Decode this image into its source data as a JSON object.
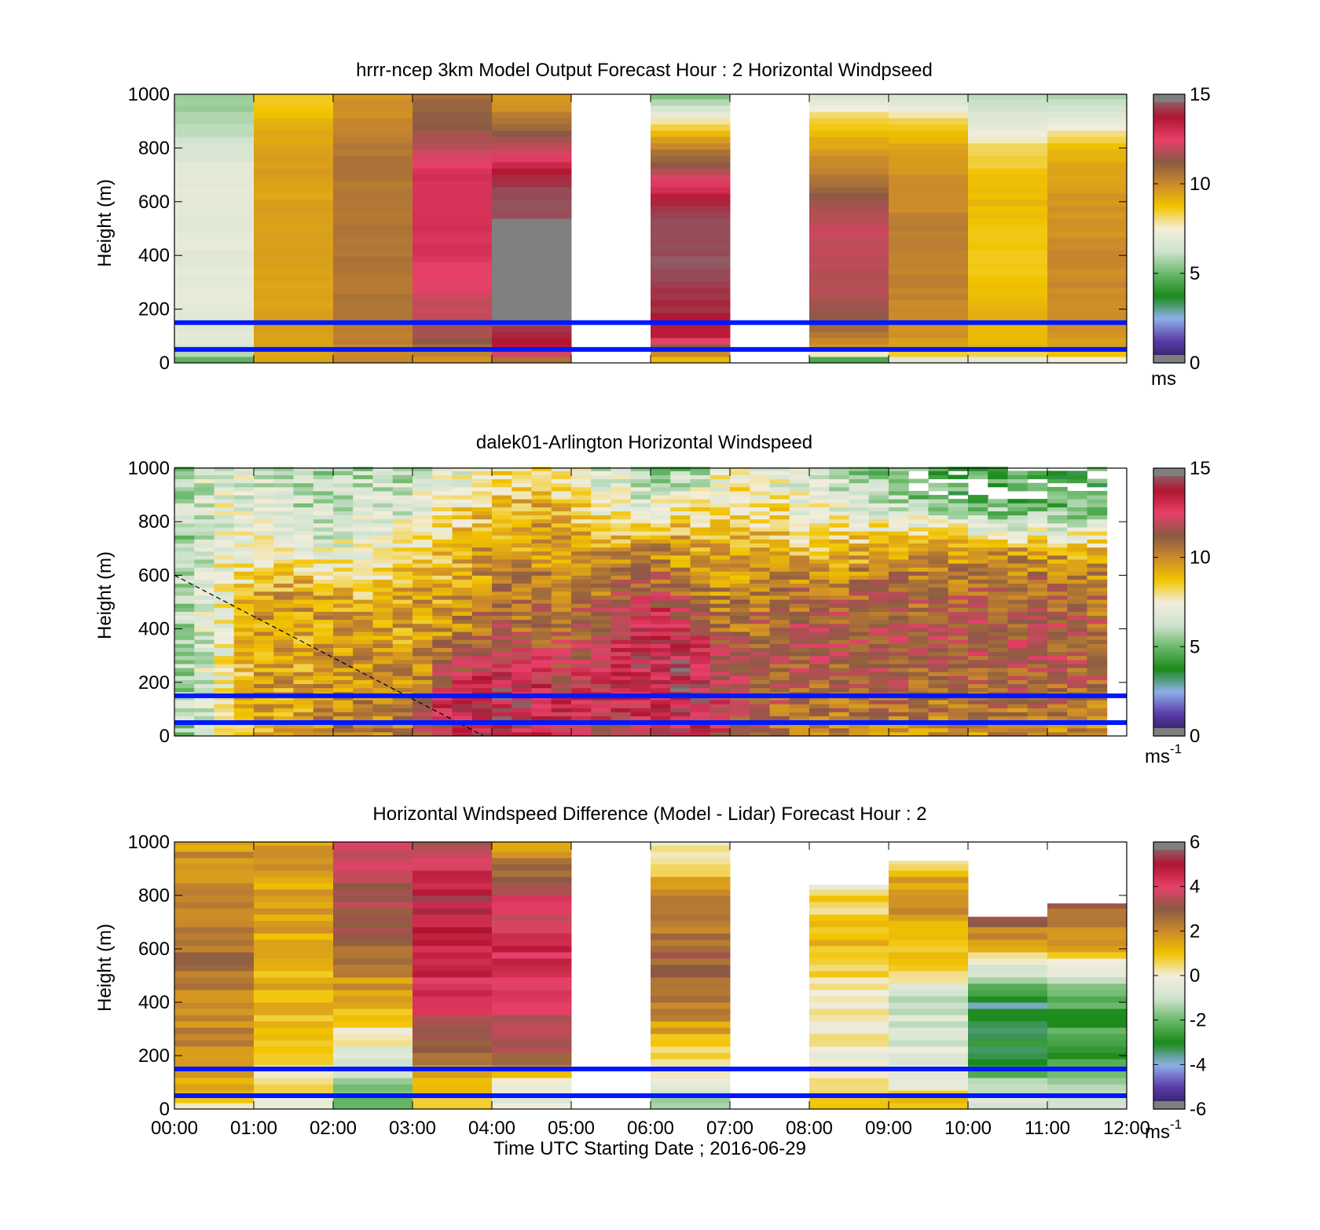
{
  "chart_data": [
    {
      "type": "heatmap",
      "title": "hrrr-ncep 3km Model Output   Forecast Hour : 2 Horizontal Windpseed",
      "ylabel": "Height (m)",
      "ylim": [
        0,
        1000
      ],
      "yticks": [
        0,
        200,
        400,
        600,
        800,
        1000
      ],
      "xlim_hours": [
        0,
        12
      ],
      "colorbar": {
        "min": 0,
        "max": 15,
        "ticks": [
          0,
          5,
          10,
          15
        ],
        "unit": "ms"
      },
      "bands": [
        {
          "start": 0,
          "end": 1,
          "heights": [
            0,
            50,
            100,
            200,
            300,
            400,
            500,
            600,
            700,
            800,
            900,
            1000
          ],
          "values": [
            4.5,
            6.5,
            7,
            7,
            7,
            7,
            7,
            7,
            7,
            6.5,
            5.8,
            5.5
          ]
        },
        {
          "start": 1,
          "end": 2,
          "heights": [
            0,
            50,
            100,
            200,
            300,
            400,
            500,
            600,
            700,
            800,
            900,
            1000
          ],
          "values": [
            9.5,
            9.5,
            9.5,
            9.5,
            9.5,
            9.5,
            9.5,
            9.5,
            9.5,
            9.5,
            9,
            8.5
          ]
        },
        {
          "start": 2,
          "end": 3,
          "heights": [
            0,
            50,
            100,
            200,
            300,
            400,
            500,
            600,
            700,
            800,
            900,
            1000
          ],
          "values": [
            10,
            10,
            10.3,
            10.5,
            10.5,
            10.5,
            10.5,
            10.5,
            10.5,
            10.5,
            10,
            9.8
          ]
        },
        {
          "start": 3,
          "end": 4,
          "heights": [
            0,
            50,
            100,
            200,
            300,
            400,
            500,
            600,
            700,
            800,
            900,
            1000
          ],
          "values": [
            9.5,
            10.5,
            11.5,
            12,
            12.5,
            12.8,
            13,
            13,
            13,
            12,
            11.2,
            10.8
          ]
        },
        {
          "start": 4,
          "end": 5,
          "heights": [
            0,
            50,
            100,
            200,
            300,
            400,
            500,
            600,
            700,
            800,
            900,
            1000
          ],
          "values": [
            9.5,
            13.5,
            14,
            null,
            null,
            null,
            null,
            14.5,
            14,
            12,
            10.5,
            9.5
          ]
        },
        {
          "start": 6,
          "end": 7,
          "heights": [
            0,
            50,
            100,
            200,
            300,
            400,
            500,
            600,
            700,
            800,
            900,
            1000
          ],
          "values": [
            8.5,
            10.5,
            13.5,
            14,
            14.3,
            14.5,
            14.5,
            14,
            12,
            10.3,
            7.8,
            5
          ]
        },
        {
          "start": 8,
          "end": 9,
          "heights": [
            0,
            50,
            100,
            200,
            300,
            400,
            500,
            600,
            700,
            800,
            900,
            1000
          ],
          "values": [
            3,
            9.5,
            10.5,
            11.5,
            11.8,
            12,
            12,
            11.5,
            10.5,
            9.5,
            8.5,
            6.3
          ]
        },
        {
          "start": 9,
          "end": 10,
          "heights": [
            0,
            50,
            100,
            200,
            300,
            400,
            500,
            600,
            700,
            800,
            900,
            1000
          ],
          "values": [
            6,
            9.5,
            9.8,
            10,
            10.2,
            10.3,
            10.3,
            10,
            9.8,
            9.5,
            8.3,
            6.3
          ]
        },
        {
          "start": 10,
          "end": 11,
          "heights": [
            0,
            50,
            100,
            200,
            300,
            400,
            500,
            600,
            700,
            800,
            900,
            1000
          ],
          "values": [
            6.5,
            9,
            9,
            9.2,
            8.7,
            8.5,
            8.8,
            9,
            8.7,
            8.2,
            6.8,
            6
          ]
        },
        {
          "start": 11,
          "end": 12,
          "heights": [
            0,
            50,
            100,
            200,
            300,
            400,
            500,
            600,
            700,
            800,
            900,
            1000
          ],
          "values": [
            7,
            9.5,
            9.8,
            10,
            10,
            10,
            9.8,
            9.8,
            9.5,
            9,
            7,
            5.8
          ]
        }
      ],
      "reference_lines_m": [
        150,
        50
      ]
    },
    {
      "type": "heatmap",
      "title": "dalek01-Arlington  Horizontal Windspeed",
      "ylabel": "Height (m)",
      "ylim": [
        0,
        1000
      ],
      "yticks": [
        0,
        200,
        400,
        600,
        800,
        1000
      ],
      "xlim_hours": [
        0,
        12
      ],
      "colorbar": {
        "min": 0,
        "max": 15,
        "ticks": [
          0,
          5,
          10,
          15
        ],
        "unit": "ms",
        "unit_sup": "-1"
      },
      "columns_per_hour": 4,
      "data_end_hour": 11.75,
      "profile_anchors": [
        {
          "t": 0.0,
          "values": [
            5.5,
            5.5,
            5.5,
            5.5,
            5.5,
            5.5,
            5.5,
            5.5,
            5.5,
            5.5,
            5.5
          ]
        },
        {
          "t": 0.5,
          "values": [
            7,
            7,
            7,
            7,
            7,
            7,
            7,
            7,
            7,
            7,
            6.5
          ]
        },
        {
          "t": 1.0,
          "values": [
            8.5,
            9.5,
            9.5,
            9.5,
            9.5,
            9.5,
            8.5,
            7.5,
            7,
            7,
            6.5
          ]
        },
        {
          "t": 1.5,
          "values": [
            9.5,
            9.5,
            9.5,
            9.5,
            9.5,
            9.5,
            9,
            7,
            6.5,
            6,
            6
          ]
        },
        {
          "t": 2.0,
          "values": [
            10.5,
            10,
            10,
            9.5,
            9.5,
            9.5,
            8,
            7,
            6.5,
            6,
            5.8
          ]
        },
        {
          "t": 2.5,
          "values": [
            10.5,
            10,
            10,
            10,
            9.5,
            9,
            8,
            7.5,
            7,
            6.5,
            6
          ]
        },
        {
          "t": 3.0,
          "values": [
            10.5,
            10.5,
            10,
            9.5,
            9.5,
            9.5,
            9,
            7.5,
            7,
            6.5,
            6
          ]
        },
        {
          "t": 3.5,
          "values": [
            12.5,
            13.5,
            12,
            11,
            10,
            9.5,
            9,
            9,
            8.5,
            7.5,
            7
          ]
        },
        {
          "t": 4.0,
          "values": [
            13.5,
            14,
            13.5,
            12,
            11,
            10.5,
            10,
            9.5,
            9,
            8,
            7.5
          ]
        },
        {
          "t": 4.5,
          "values": [
            13.5,
            14,
            13,
            12,
            11,
            10.5,
            10,
            9.5,
            9.5,
            9,
            8.5
          ]
        },
        {
          "t": 5.0,
          "values": [
            12,
            12.5,
            12,
            11.5,
            11,
            10.5,
            10,
            9.5,
            9,
            8,
            7
          ]
        },
        {
          "t": 5.5,
          "values": [
            12,
            12.5,
            13,
            13,
            12,
            11,
            10.5,
            9.5,
            8,
            7,
            6.5
          ]
        },
        {
          "t": 6.0,
          "values": [
            13,
            13.5,
            13.5,
            13.5,
            13.5,
            12.5,
            11,
            10,
            8,
            6.5,
            6
          ]
        },
        {
          "t": 6.5,
          "values": [
            13.5,
            14,
            14,
            13.5,
            12.5,
            11,
            10,
            9.5,
            8.5,
            6.5,
            5.5
          ]
        },
        {
          "t": 7.0,
          "values": [
            11.5,
            12,
            11.5,
            11,
            10.5,
            10,
            9.5,
            9,
            8.5,
            8,
            8
          ]
        },
        {
          "t": 7.5,
          "values": [
            10.5,
            11,
            11,
            11,
            11,
            10.5,
            10,
            9.5,
            8.5,
            7.5,
            7
          ]
        },
        {
          "t": 8.0,
          "values": [
            10,
            10.5,
            11,
            11.5,
            11.5,
            11,
            10,
            8.5,
            7.5,
            7,
            6.5
          ]
        },
        {
          "t": 8.5,
          "values": [
            10,
            10.5,
            11,
            11.5,
            11.5,
            11,
            10,
            9,
            7.5,
            6.5,
            6
          ]
        },
        {
          "t": 9.0,
          "values": [
            10,
            10.5,
            11,
            11.5,
            11.5,
            11,
            10.5,
            9,
            7.5,
            6,
            5
          ]
        },
        {
          "t": 9.5,
          "values": [
            10,
            10.5,
            11,
            11.5,
            11.5,
            11,
            10.5,
            9.5,
            7,
            5,
            4.5
          ]
        },
        {
          "t": 10.0,
          "values": [
            10,
            10.5,
            11,
            11.5,
            11.5,
            11,
            10.5,
            9.5,
            6.5,
            4.5,
            4.5
          ]
        },
        {
          "t": 10.5,
          "values": [
            10,
            10.5,
            11,
            11.5,
            11.5,
            11,
            10.5,
            9.5,
            6,
            4.5,
            4.5
          ]
        },
        {
          "t": 11.0,
          "values": [
            10,
            10.5,
            11,
            11.5,
            11.5,
            11,
            10.5,
            9.5,
            6,
            4.5,
            4.5
          ]
        },
        {
          "t": 11.75,
          "values": [
            10,
            10.5,
            11,
            11,
            11,
            10.5,
            10,
            9,
            6,
            4.5,
            4
          ]
        }
      ],
      "reference_lines_m": [
        150,
        50
      ],
      "dashed_line": [
        [
          0.0,
          600
        ],
        [
          3.9,
          0
        ]
      ]
    },
    {
      "type": "heatmap",
      "title": "Horizontal Windspeed Difference (Model - Lidar) Forecast Hour : 2",
      "xlabel": "Time UTC  Starting Date ; 2016-06-29",
      "ylabel": "Height (m)",
      "ylim": [
        0,
        1000
      ],
      "yticks": [
        0,
        200,
        400,
        600,
        800,
        1000
      ],
      "xlim_hours": [
        0,
        12
      ],
      "xticks": [
        "00:00",
        "01:00",
        "02:00",
        "03:00",
        "04:00",
        "05:00",
        "06:00",
        "07:00",
        "08:00",
        "09:00",
        "10:00",
        "11:00",
        "12:00"
      ],
      "colorbar": {
        "min": -6,
        "max": 6,
        "ticks": [
          -6,
          -4,
          -2,
          0,
          2,
          4,
          6
        ],
        "unit": "ms",
        "unit_sup": "-1"
      },
      "bands": [
        {
          "start": 0,
          "end": 1,
          "top": 1000,
          "heights": [
            0,
            100,
            200,
            400,
            600,
            800,
            1000
          ],
          "values": [
            0.5,
            1.5,
            1.8,
            2.2,
            2.5,
            2.3,
            1.8
          ]
        },
        {
          "start": 1,
          "end": 2,
          "top": 1000,
          "heights": [
            0,
            100,
            200,
            400,
            600,
            800,
            1000
          ],
          "values": [
            -0.2,
            0.5,
            0.6,
            1.2,
            1.4,
            1.5,
            1.6
          ]
        },
        {
          "start": 2,
          "end": 3,
          "top": 1000,
          "heights": [
            0,
            100,
            200,
            400,
            600,
            800,
            1000
          ],
          "values": [
            -2.5,
            -1.5,
            -0.5,
            1.2,
            2.8,
            3.5,
            3.6
          ]
        },
        {
          "start": 3,
          "end": 4,
          "top": 1000,
          "heights": [
            0,
            100,
            200,
            400,
            600,
            800,
            1000
          ],
          "values": [
            0.5,
            1,
            2.5,
            4.3,
            4.6,
            5,
            3.5
          ]
        },
        {
          "start": 4,
          "end": 5,
          "top": 1000,
          "heights": [
            0,
            100,
            200,
            400,
            600,
            800,
            1000
          ],
          "values": [
            -0.5,
            -0.2,
            3,
            4,
            4.5,
            3.8,
            1.5
          ]
        },
        {
          "start": 6,
          "end": 7,
          "top": 1000,
          "heights": [
            0,
            100,
            200,
            400,
            600,
            800,
            1000
          ],
          "values": [
            -1.5,
            -0.5,
            0.5,
            2.5,
            2.8,
            2,
            -0.2
          ]
        },
        {
          "start": 8,
          "end": 9,
          "top": 840,
          "heights": [
            0,
            100,
            200,
            400,
            600,
            800,
            840
          ],
          "values": [
            1,
            0.5,
            0,
            0,
            1.2,
            0.5,
            -0.2
          ]
        },
        {
          "start": 9,
          "end": 10,
          "top": 930,
          "heights": [
            0,
            100,
            200,
            400,
            600,
            800,
            930
          ],
          "values": [
            1.2,
            0,
            -0.5,
            -1,
            1.2,
            2,
            0.8
          ]
        },
        {
          "start": 10,
          "end": 11,
          "top": 720,
          "heights": [
            0,
            100,
            200,
            400,
            600,
            720
          ],
          "values": [
            -0.5,
            -1.5,
            -2.8,
            -3.5,
            1.2,
            3
          ]
        },
        {
          "start": 11,
          "end": 12,
          "top": 770,
          "heights": [
            0,
            100,
            200,
            400,
            600,
            770
          ],
          "values": [
            -0.5,
            -1.5,
            -2.5,
            -2.5,
            1.2,
            3
          ]
        }
      ],
      "reference_lines_m": [
        150,
        50
      ]
    }
  ],
  "colormap": [
    "#2a1e52",
    "#5a3aa8",
    "#8fb0e8",
    "#1a8a1a",
    "#6ab86a",
    "#cfe3cf",
    "#f2eedc",
    "#f2c400",
    "#cc8a2a",
    "#8a5a44",
    "#e8406a",
    "#b01530",
    "#7f7f7f"
  ],
  "reference_line_color": "#0018ff"
}
